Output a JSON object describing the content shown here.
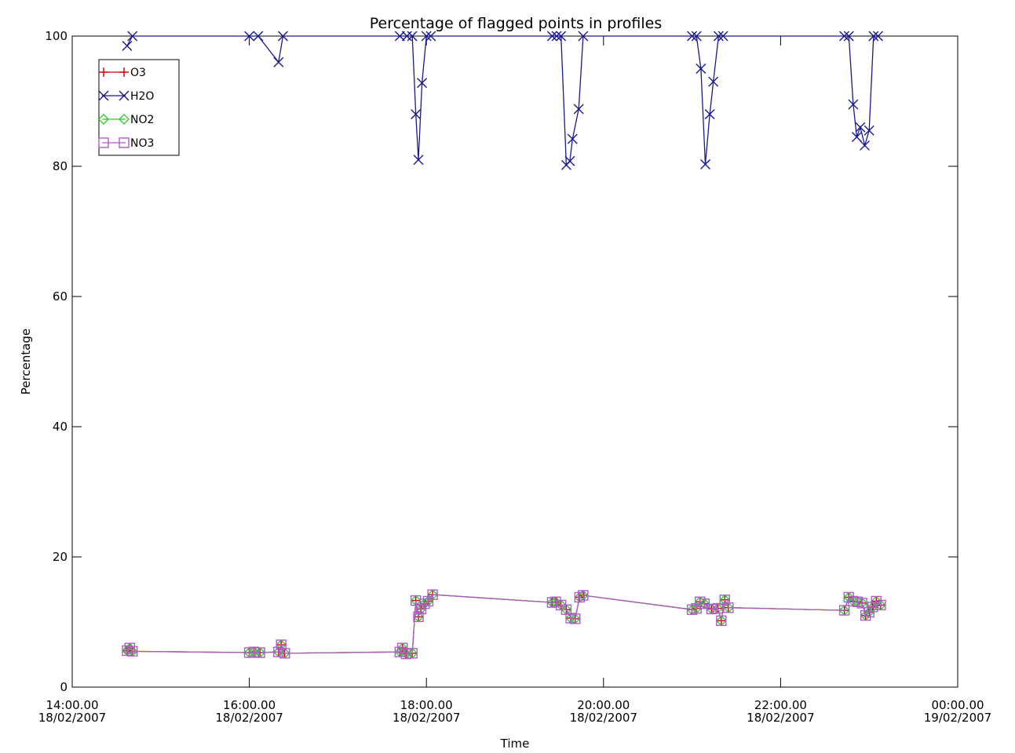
{
  "chart_data": {
    "type": "line",
    "title": "Percentage of flagged points in profiles",
    "xlabel": "Time",
    "ylabel": "Percentage",
    "x_unit": "hours since 00:00 18/02/2007",
    "xlim": [
      14,
      24
    ],
    "ylim": [
      0,
      100
    ],
    "grid": false,
    "legend_position": "top-left",
    "x_ticks": [
      {
        "value": 14,
        "time": "14:00.00",
        "date": "18/02/2007"
      },
      {
        "value": 16,
        "time": "16:00.00",
        "date": "18/02/2007"
      },
      {
        "value": 18,
        "time": "18:00.00",
        "date": "18/02/2007"
      },
      {
        "value": 20,
        "time": "20:00.00",
        "date": "18/02/2007"
      },
      {
        "value": 22,
        "time": "22:00.00",
        "date": "18/02/2007"
      },
      {
        "value": 24,
        "time": "00:00.00",
        "date": "19/02/2007"
      }
    ],
    "y_ticks": [
      0,
      20,
      40,
      60,
      80,
      100
    ],
    "series": [
      {
        "name": "O3",
        "color": "#cc0000",
        "marker": "plus",
        "points": [
          [
            14.62,
            5.6
          ],
          [
            14.65,
            6.0
          ],
          [
            14.68,
            5.5
          ],
          [
            16.0,
            5.3
          ],
          [
            16.05,
            5.4
          ],
          [
            16.12,
            5.3
          ],
          [
            16.33,
            5.4
          ],
          [
            16.36,
            6.5
          ],
          [
            16.4,
            5.2
          ],
          [
            17.7,
            5.4
          ],
          [
            17.73,
            6.0
          ],
          [
            17.77,
            5.1
          ],
          [
            17.84,
            5.2
          ],
          [
            17.88,
            13.3
          ],
          [
            17.91,
            10.8
          ],
          [
            17.94,
            12.0
          ],
          [
            17.98,
            12.8
          ],
          [
            18.02,
            13.2
          ],
          [
            18.07,
            14.2
          ],
          [
            19.42,
            13.0
          ],
          [
            19.46,
            13.1
          ],
          [
            19.52,
            12.6
          ],
          [
            19.58,
            11.9
          ],
          [
            19.63,
            10.6
          ],
          [
            19.68,
            10.5
          ],
          [
            19.73,
            13.8
          ],
          [
            19.77,
            14.1
          ],
          [
            21.0,
            11.9
          ],
          [
            21.05,
            12.1
          ],
          [
            21.09,
            13.1
          ],
          [
            21.14,
            12.8
          ],
          [
            21.22,
            12.0
          ],
          [
            21.29,
            12.1
          ],
          [
            21.33,
            10.2
          ],
          [
            21.37,
            13.4
          ],
          [
            21.41,
            12.2
          ],
          [
            22.72,
            11.8
          ],
          [
            22.77,
            13.8
          ],
          [
            22.82,
            13.2
          ],
          [
            22.87,
            13.1
          ],
          [
            22.92,
            12.9
          ],
          [
            22.96,
            11.0
          ],
          [
            23.0,
            11.5
          ],
          [
            23.04,
            12.3
          ],
          [
            23.08,
            13.2
          ],
          [
            23.13,
            12.6
          ]
        ]
      },
      {
        "name": "H2O",
        "color": "#1a1a8c",
        "marker": "x",
        "points": [
          [
            14.62,
            98.5
          ],
          [
            14.68,
            100
          ],
          [
            16.0,
            100
          ],
          [
            16.1,
            100
          ],
          [
            16.33,
            96.0
          ],
          [
            16.38,
            100
          ],
          [
            17.7,
            100
          ],
          [
            17.78,
            100
          ],
          [
            17.84,
            100
          ],
          [
            17.88,
            88.0
          ],
          [
            17.91,
            81.0
          ],
          [
            17.95,
            92.8
          ],
          [
            18.0,
            100
          ],
          [
            18.05,
            100
          ],
          [
            19.42,
            100
          ],
          [
            19.47,
            100
          ],
          [
            19.52,
            100
          ],
          [
            19.58,
            80.2
          ],
          [
            19.62,
            80.8
          ],
          [
            19.65,
            84.2
          ],
          [
            19.72,
            88.8
          ],
          [
            19.77,
            100
          ],
          [
            21.0,
            100
          ],
          [
            21.05,
            100
          ],
          [
            21.1,
            95.0
          ],
          [
            21.15,
            80.3
          ],
          [
            21.2,
            88.0
          ],
          [
            21.24,
            93.0
          ],
          [
            21.3,
            100
          ],
          [
            21.35,
            100
          ],
          [
            22.72,
            100
          ],
          [
            22.77,
            100
          ],
          [
            22.82,
            89.5
          ],
          [
            22.86,
            84.5
          ],
          [
            22.9,
            86.0
          ],
          [
            22.95,
            83.2
          ],
          [
            23.0,
            85.5
          ],
          [
            23.05,
            100
          ],
          [
            23.1,
            100
          ]
        ]
      },
      {
        "name": "NO2",
        "color": "#33cc33",
        "marker": "diamond",
        "points": [
          [
            14.62,
            5.6
          ],
          [
            14.65,
            6.0
          ],
          [
            14.68,
            5.5
          ],
          [
            16.0,
            5.3
          ],
          [
            16.05,
            5.4
          ],
          [
            16.12,
            5.3
          ],
          [
            16.33,
            5.4
          ],
          [
            16.36,
            6.5
          ],
          [
            16.4,
            5.2
          ],
          [
            17.7,
            5.4
          ],
          [
            17.73,
            6.0
          ],
          [
            17.77,
            5.1
          ],
          [
            17.84,
            5.2
          ],
          [
            17.88,
            13.3
          ],
          [
            17.91,
            10.8
          ],
          [
            17.94,
            12.0
          ],
          [
            17.98,
            12.8
          ],
          [
            18.02,
            13.2
          ],
          [
            18.07,
            14.2
          ],
          [
            19.42,
            13.0
          ],
          [
            19.46,
            13.1
          ],
          [
            19.52,
            12.6
          ],
          [
            19.58,
            11.9
          ],
          [
            19.63,
            10.6
          ],
          [
            19.68,
            10.5
          ],
          [
            19.73,
            13.8
          ],
          [
            19.77,
            14.1
          ],
          [
            21.0,
            11.9
          ],
          [
            21.05,
            12.1
          ],
          [
            21.09,
            13.1
          ],
          [
            21.14,
            12.8
          ],
          [
            21.22,
            12.0
          ],
          [
            21.29,
            12.1
          ],
          [
            21.33,
            10.2
          ],
          [
            21.37,
            13.4
          ],
          [
            21.41,
            12.2
          ],
          [
            22.72,
            11.8
          ],
          [
            22.77,
            13.8
          ],
          [
            22.82,
            13.2
          ],
          [
            22.87,
            13.1
          ],
          [
            22.92,
            12.9
          ],
          [
            22.96,
            11.0
          ],
          [
            23.0,
            11.5
          ],
          [
            23.04,
            12.3
          ],
          [
            23.08,
            13.2
          ],
          [
            23.13,
            12.6
          ]
        ]
      },
      {
        "name": "NO3",
        "color": "#b05cc8",
        "marker": "square",
        "points": [
          [
            14.62,
            5.6
          ],
          [
            14.65,
            6.0
          ],
          [
            14.68,
            5.5
          ],
          [
            16.0,
            5.3
          ],
          [
            16.05,
            5.4
          ],
          [
            16.12,
            5.3
          ],
          [
            16.33,
            5.4
          ],
          [
            16.36,
            6.5
          ],
          [
            16.4,
            5.2
          ],
          [
            17.7,
            5.4
          ],
          [
            17.73,
            6.0
          ],
          [
            17.77,
            5.1
          ],
          [
            17.84,
            5.2
          ],
          [
            17.88,
            13.3
          ],
          [
            17.91,
            10.8
          ],
          [
            17.94,
            12.0
          ],
          [
            17.98,
            12.8
          ],
          [
            18.02,
            13.2
          ],
          [
            18.07,
            14.2
          ],
          [
            19.42,
            13.0
          ],
          [
            19.46,
            13.1
          ],
          [
            19.52,
            12.6
          ],
          [
            19.58,
            11.9
          ],
          [
            19.63,
            10.6
          ],
          [
            19.68,
            10.5
          ],
          [
            19.73,
            13.8
          ],
          [
            19.77,
            14.1
          ],
          [
            21.0,
            11.9
          ],
          [
            21.05,
            12.1
          ],
          [
            21.09,
            13.1
          ],
          [
            21.14,
            12.8
          ],
          [
            21.22,
            12.0
          ],
          [
            21.29,
            12.1
          ],
          [
            21.33,
            10.2
          ],
          [
            21.37,
            13.4
          ],
          [
            21.41,
            12.2
          ],
          [
            22.72,
            11.8
          ],
          [
            22.77,
            13.8
          ],
          [
            22.82,
            13.2
          ],
          [
            22.87,
            13.1
          ],
          [
            22.92,
            12.9
          ],
          [
            22.96,
            11.0
          ],
          [
            23.0,
            11.5
          ],
          [
            23.04,
            12.3
          ],
          [
            23.08,
            13.2
          ],
          [
            23.13,
            12.6
          ]
        ]
      }
    ]
  }
}
